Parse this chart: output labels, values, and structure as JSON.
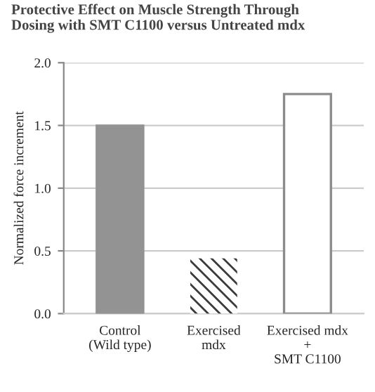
{
  "chart_data": {
    "type": "bar",
    "title": "Protective Effect on Muscle Strength Through\nDosing with SMT C1100 versus Untreated mdx",
    "ylabel": "Normalized force increment",
    "categories": [
      "Control\n(Wild type)",
      "Exercised\nmdx",
      "Exercised mdx\n+\nSMT C1100"
    ],
    "values": [
      1.5,
      0.44,
      1.75
    ],
    "colors": [
      "#939393",
      "#3a3a3a",
      "#ffffff"
    ],
    "ylim": [
      0,
      2.0
    ],
    "yticks": [
      {
        "value": 0,
        "label": "0.0"
      },
      {
        "value": 0.5,
        "label": "0.5"
      },
      {
        "value": 1,
        "label": "1.0"
      },
      {
        "value": 1.5,
        "label": "1.5"
      },
      {
        "value": 2,
        "label": "2.0"
      }
    ],
    "grid": "y"
  }
}
